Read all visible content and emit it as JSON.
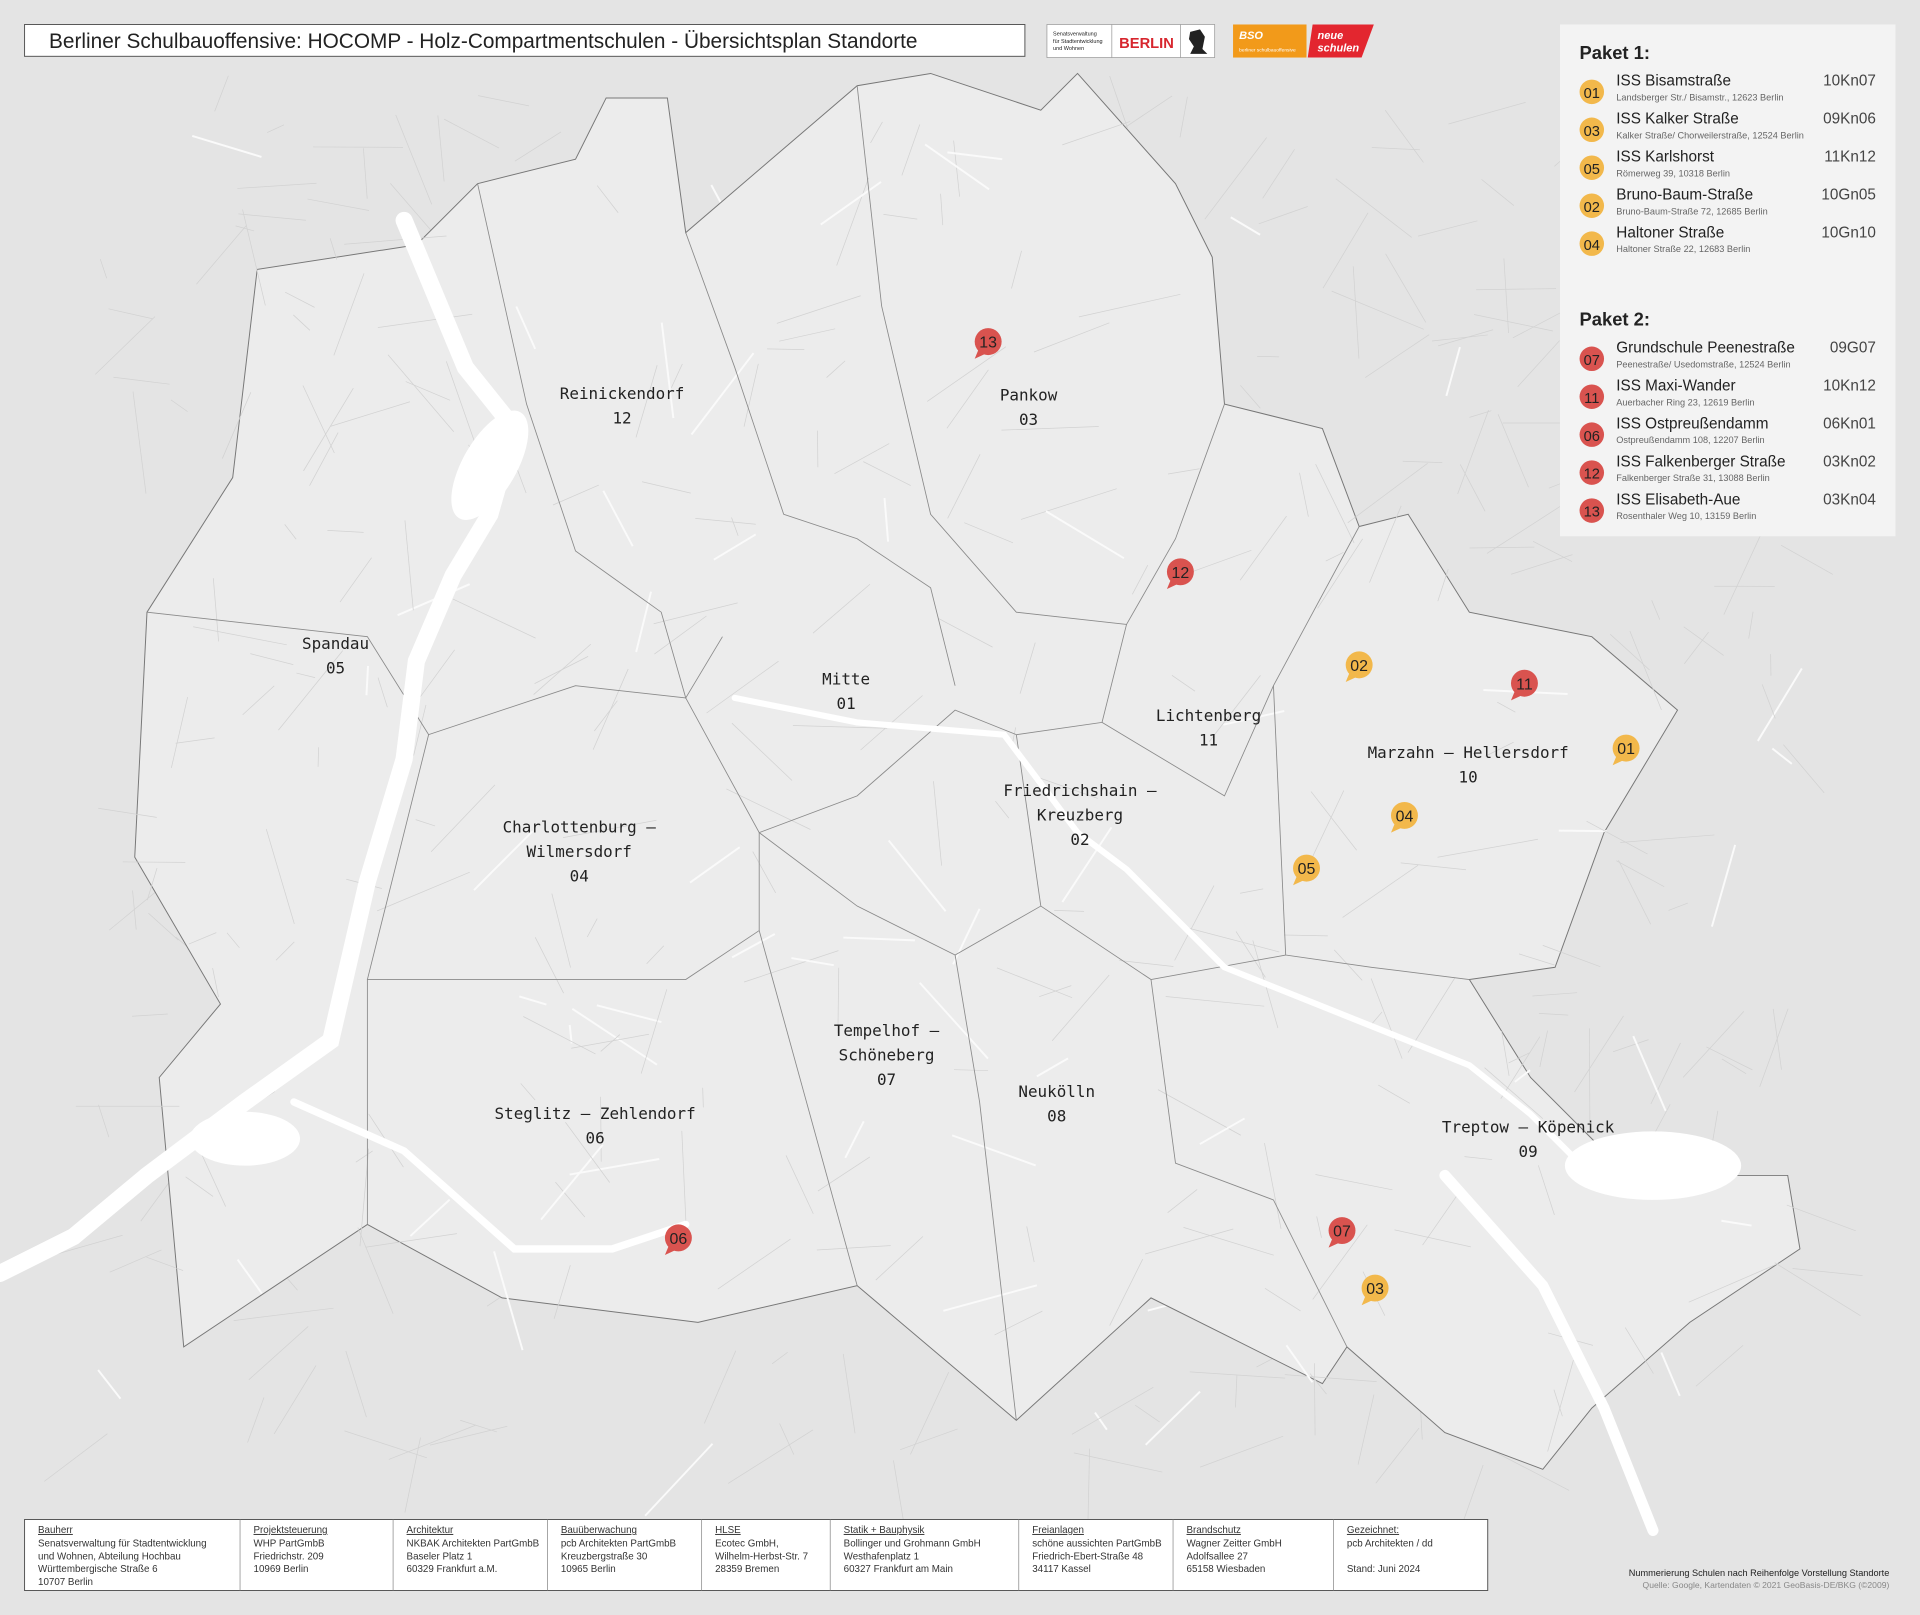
{
  "title": "Berliner Schulbauoffensive: HOCOMP - Holz-Compartmentschulen - Übersichtsplan Standorte",
  "logos": {
    "senat": [
      "Senatsverwaltung",
      "für Stadtentwicklung",
      "und Wohnen"
    ],
    "berlin": "BERLIN",
    "bso": "BSO",
    "bso_sub": "berliner schulbauoffensive",
    "neue": [
      "neue",
      "schulen"
    ]
  },
  "legend": [
    {
      "title": "Paket 1:",
      "color": "#f2b84b",
      "items": [
        {
          "number": "01",
          "name": "ISS Bisamstraße",
          "address": "Landsberger Str./ Bisamstr., 12623 Berlin",
          "code": "10Kn07"
        },
        {
          "number": "03",
          "name": "ISS Kalker Straße",
          "address": "Kalker Straße/ Chorweilerstraße, 12524 Berlin",
          "code": "09Kn06"
        },
        {
          "number": "05",
          "name": "ISS Karlshorst",
          "address": "Römerweg 39, 10318 Berlin",
          "code": "11Kn12"
        },
        {
          "number": "02",
          "name": "Bruno-Baum-Straße",
          "address": "Bruno-Baum-Straße 72, 12685 Berlin",
          "code": "10Gn05"
        },
        {
          "number": "04",
          "name": "Haltoner Straße",
          "address": "Haltoner Straße 22, 12683 Berlin",
          "code": "10Gn10"
        }
      ]
    },
    {
      "title": "Paket 2:",
      "color": "#d9534f",
      "items": [
        {
          "number": "07",
          "name": "Grundschule Peenestraße",
          "address": "Peenestraße/ Usedomstraße, 12524 Berlin",
          "code": "09G07"
        },
        {
          "number": "11",
          "name": "ISS Maxi-Wander",
          "address": "Auerbacher Ring 23, 12619 Berlin",
          "code": "10Kn12"
        },
        {
          "number": "06",
          "name": "ISS Ostpreußendamm",
          "address": "Ostpreußendamm 108, 12207 Berlin",
          "code": "06Kn01"
        },
        {
          "number": "12",
          "name": "ISS Falkenberger Straße",
          "address": "Falkenberger Straße 31, 13088 Berlin",
          "code": "03Kn02"
        },
        {
          "number": "13",
          "name": "ISS Elisabeth-Aue",
          "address": "Rosenthaler Weg 10, 13159 Berlin",
          "code": "03Kn04"
        }
      ]
    }
  ],
  "districts": [
    {
      "name": [
        "Reinickendorf"
      ],
      "number": "12"
    },
    {
      "name": [
        "Pankow"
      ],
      "number": "03"
    },
    {
      "name": [
        "Spandau"
      ],
      "number": "05"
    },
    {
      "name": [
        "Mitte"
      ],
      "number": "01"
    },
    {
      "name": [
        "Lichtenberg"
      ],
      "number": "11"
    },
    {
      "name": [
        "Marzahn – Hellersdorf"
      ],
      "number": "10"
    },
    {
      "name": [
        "Friedrichshain –",
        "Kreuzberg"
      ],
      "number": "02"
    },
    {
      "name": [
        "Charlottenburg –",
        "Wilmersdorf"
      ],
      "number": "04"
    },
    {
      "name": [
        "Tempelhof –",
        "Schöneberg"
      ],
      "number": "07"
    },
    {
      "name": [
        "Neukölln"
      ],
      "number": "08"
    },
    {
      "name": [
        "Steglitz – Zehlendorf"
      ],
      "number": "06"
    },
    {
      "name": [
        "Treptow – Köpenick"
      ],
      "number": "09"
    }
  ],
  "markers": [
    {
      "label": "13",
      "color": "#d9534f"
    },
    {
      "label": "12",
      "color": "#d9534f"
    },
    {
      "label": "02",
      "color": "#f2b84b"
    },
    {
      "label": "11",
      "color": "#d9534f"
    },
    {
      "label": "01",
      "color": "#f2b84b"
    },
    {
      "label": "04",
      "color": "#f2b84b"
    },
    {
      "label": "05",
      "color": "#f2b84b"
    },
    {
      "label": "07",
      "color": "#d9534f"
    },
    {
      "label": "03",
      "color": "#f2b84b"
    },
    {
      "label": "06",
      "color": "#d9534f"
    }
  ],
  "footer": [
    {
      "heading": "Bauherr",
      "lines": [
        "Senatsverwaltung für Stadtentwicklung",
        "und Wohnen, Abteilung Hochbau",
        "Württembergische Straße 6",
        "10707 Berlin"
      ]
    },
    {
      "heading": "Projektsteuerung",
      "lines": [
        "WHP PartGmbB",
        "Friedrichstr. 209",
        "10969 Berlin"
      ]
    },
    {
      "heading": "Architektur",
      "lines": [
        "NKBAK Architekten PartGmbB",
        "Baseler Platz 1",
        "60329 Frankfurt a.M."
      ]
    },
    {
      "heading": "Bauüberwachung",
      "lines": [
        "pcb Architekten PartGmbB",
        "Kreuzbergstraße 30",
        "10965 Berlin"
      ]
    },
    {
      "heading": "HLSE",
      "lines": [
        "Ecotec GmbH,",
        "Wilhelm-Herbst-Str. 7",
        "28359 Bremen"
      ]
    },
    {
      "heading": "Statik + Bauphysik",
      "lines": [
        "Bollinger und Grohmann GmbH",
        "Westhafenplatz 1",
        "60327 Frankfurt am Main"
      ]
    },
    {
      "heading": "Freianlagen",
      "lines": [
        "schöne aussichten PartGmbB",
        "Friedrich-Ebert-Straße 48",
        "34117 Kassel"
      ]
    },
    {
      "heading": "Brandschutz",
      "lines": [
        "Wagner Zeitter GmbH",
        "Adolfsallee 27",
        "65158 Wiesbaden"
      ]
    },
    {
      "heading": "Gezeichnet:",
      "lines": [
        "pcb Architekten / dd",
        "Stand: Juni 2024"
      ]
    }
  ],
  "notes": [
    "Nummerierung Schulen nach Reihenfolge Vorstellung Standorte",
    "Quelle: Google, Kartendaten © 2021 GeoBasis-DE/BKG (©2009)"
  ]
}
